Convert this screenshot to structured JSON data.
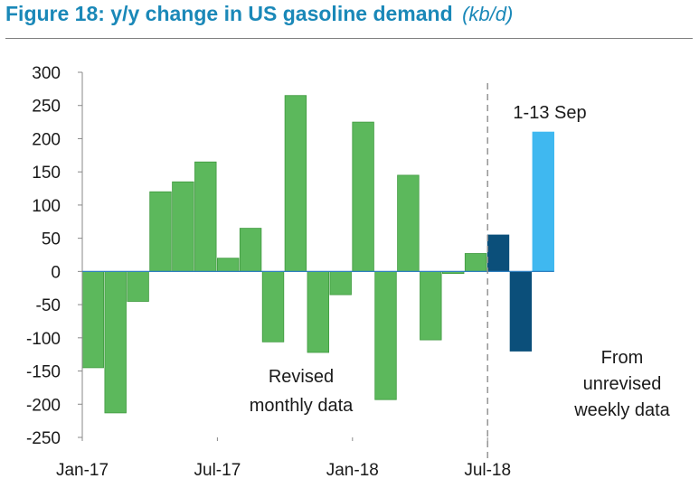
{
  "title": {
    "main": "Figure 18: y/y change in US gasoline demand",
    "unit": "(kb/d)"
  },
  "colors": {
    "title": "#1a88b8",
    "revised": "#5cb85c",
    "revised_edge": "#3f9a3f",
    "weekly_dark": "#0b4f7a",
    "weekly_light": "#3fb8f0"
  },
  "annotations": {
    "revised": [
      "Revised",
      "monthly data"
    ],
    "weekly": [
      "From",
      "unrevised",
      "weekly data"
    ],
    "partial": "1-13 Sep"
  },
  "chart_data": {
    "type": "bar",
    "title": "Figure 18: y/y change in US gasoline demand",
    "ylabel": "",
    "xlabel": "",
    "ylim": [
      -250,
      300
    ],
    "yticks": [
      300,
      250,
      200,
      150,
      100,
      50,
      0,
      -50,
      -100,
      -150,
      -200,
      -250
    ],
    "xtick_labels": [
      "Jan-17",
      "Jul-17",
      "Jan-18",
      "Jul-18"
    ],
    "grid": false,
    "divider_before": "Jul-18",
    "categories": [
      "Jan-17",
      "Feb-17",
      "Mar-17",
      "Apr-17",
      "May-17",
      "Jun-17",
      "Jul-17",
      "Aug-17",
      "Sep-17",
      "Oct-17",
      "Nov-17",
      "Dec-17",
      "Jan-18",
      "Feb-18",
      "Mar-18",
      "Apr-18",
      "May-18",
      "Jun-18",
      "Jul-18",
      "Aug-18",
      "Sep-18"
    ],
    "series": [
      {
        "values": [
          -145,
          -213,
          -45,
          120,
          135,
          165,
          20,
          65,
          -106,
          265,
          -122,
          -35,
          225,
          -193,
          145,
          -103,
          -3,
          27,
          55,
          -120,
          210
        ],
        "groups": [
          "revised",
          "revised",
          "revised",
          "revised",
          "revised",
          "revised",
          "revised",
          "revised",
          "revised",
          "revised",
          "revised",
          "revised",
          "revised",
          "revised",
          "revised",
          "revised",
          "revised",
          "revised",
          "weekly_dark",
          "weekly_dark",
          "weekly_light"
        ]
      }
    ]
  }
}
